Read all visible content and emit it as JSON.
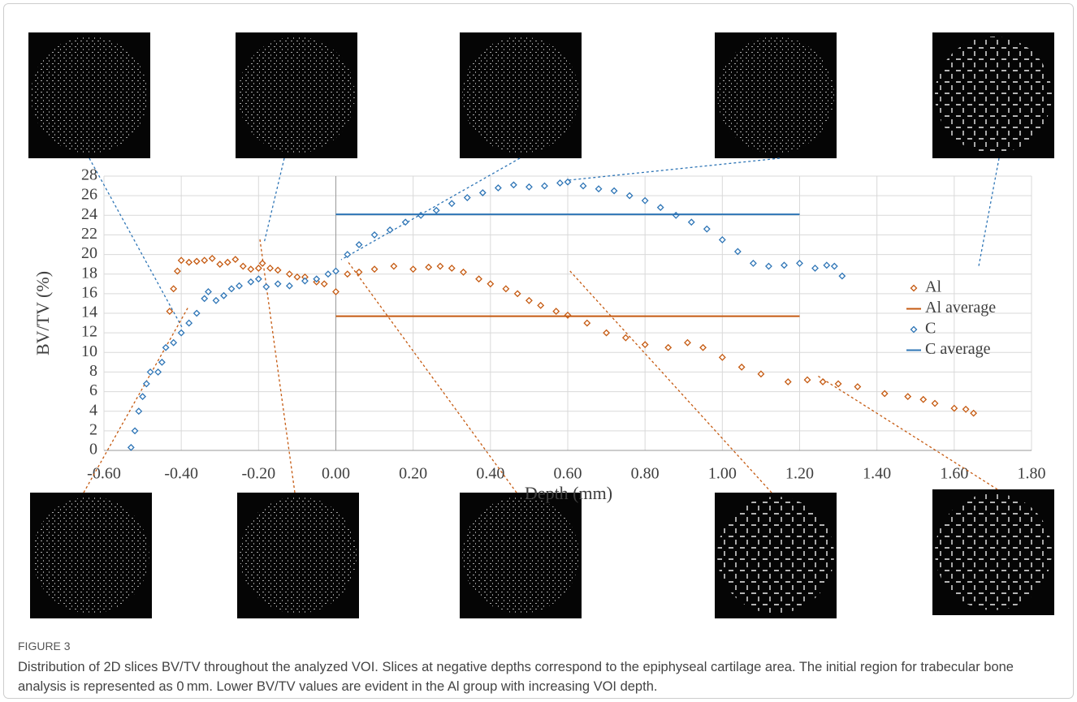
{
  "chart_data": {
    "type": "scatter",
    "ylabel": "BV/TV (%)",
    "xlabel": "Depth (mm)",
    "xlim": [
      -0.6,
      1.8
    ],
    "xticks": [
      {
        "value": -0.6,
        "label": "-0.60"
      },
      {
        "value": -0.4,
        "label": "-0.40"
      },
      {
        "value": -0.2,
        "label": "-0.20"
      },
      {
        "value": 0,
        "label": "0.00"
      },
      {
        "value": 0.2,
        "label": "0.20"
      },
      {
        "value": 0.4,
        "label": "0.40"
      },
      {
        "value": 0.6,
        "label": "0.60"
      },
      {
        "value": 0.8,
        "label": "0.80"
      },
      {
        "value": 1.0,
        "label": "1.00"
      },
      {
        "value": 1.2,
        "label": "1.20"
      },
      {
        "value": 1.4,
        "label": "1.40"
      },
      {
        "value": 1.6,
        "label": "1.60"
      },
      {
        "value": 1.8,
        "label": "1.80"
      }
    ],
    "ylim": [
      0,
      28
    ],
    "yticks": [
      0,
      2,
      4,
      6,
      8,
      10,
      12,
      14,
      16,
      18,
      20,
      22,
      24,
      26,
      28
    ],
    "grid": true,
    "legend": "right",
    "series": [
      {
        "name": "Al",
        "color": "#c55a11",
        "marker": "diamond",
        "x": [
          -0.43,
          -0.42,
          -0.41,
          -0.4,
          -0.38,
          -0.36,
          -0.34,
          -0.32,
          -0.3,
          -0.28,
          -0.26,
          -0.24,
          -0.22,
          -0.2,
          -0.19,
          -0.17,
          -0.15,
          -0.12,
          -0.1,
          -0.08,
          -0.05,
          -0.03,
          0.0,
          0.03,
          0.06,
          0.1,
          0.15,
          0.2,
          0.24,
          0.27,
          0.3,
          0.33,
          0.37,
          0.4,
          0.44,
          0.47,
          0.5,
          0.53,
          0.57,
          0.6,
          0.65,
          0.7,
          0.75,
          0.8,
          0.86,
          0.91,
          0.95,
          1.0,
          1.05,
          1.1,
          1.17,
          1.22,
          1.26,
          1.3,
          1.35,
          1.42,
          1.48,
          1.52,
          1.55,
          1.6,
          1.63,
          1.65
        ],
        "values": [
          14.2,
          16.5,
          18.3,
          19.4,
          19.2,
          19.3,
          19.4,
          19.6,
          19.0,
          19.2,
          19.5,
          18.8,
          18.5,
          18.6,
          19.1,
          18.6,
          18.4,
          18.0,
          17.7,
          17.7,
          17.2,
          17.0,
          16.2,
          18.0,
          18.2,
          18.5,
          18.8,
          18.5,
          18.7,
          18.8,
          18.6,
          18.2,
          17.5,
          17.0,
          16.5,
          16.0,
          15.3,
          14.8,
          14.2,
          13.8,
          13.0,
          12.0,
          11.5,
          10.8,
          10.5,
          11.0,
          10.5,
          9.5,
          8.5,
          7.8,
          7.0,
          7.2,
          7.0,
          6.8,
          6.5,
          5.8,
          5.5,
          5.2,
          4.8,
          4.3,
          4.2,
          3.8
        ]
      },
      {
        "name": "Al average",
        "color": "#c55a11",
        "marker": "line",
        "x": [
          0,
          1.2
        ],
        "values": [
          13.7,
          13.7
        ]
      },
      {
        "name": "C",
        "color": "#2e75b6",
        "marker": "diamond",
        "x": [
          -0.53,
          -0.52,
          -0.51,
          -0.5,
          -0.49,
          -0.48,
          -0.46,
          -0.45,
          -0.44,
          -0.42,
          -0.4,
          -0.38,
          -0.36,
          -0.34,
          -0.33,
          -0.31,
          -0.29,
          -0.27,
          -0.25,
          -0.22,
          -0.2,
          -0.18,
          -0.15,
          -0.12,
          -0.08,
          -0.05,
          -0.02,
          0.0,
          0.03,
          0.06,
          0.1,
          0.14,
          0.18,
          0.22,
          0.26,
          0.3,
          0.34,
          0.38,
          0.42,
          0.46,
          0.5,
          0.54,
          0.58,
          0.6,
          0.64,
          0.68,
          0.72,
          0.76,
          0.8,
          0.84,
          0.88,
          0.92,
          0.96,
          1.0,
          1.04,
          1.08,
          1.12,
          1.16,
          1.2,
          1.24,
          1.27,
          1.29,
          1.31
        ],
        "values": [
          0.3,
          2.0,
          4.0,
          5.5,
          6.8,
          8.0,
          8.0,
          9.0,
          10.5,
          11.0,
          12.0,
          13.0,
          14.0,
          15.5,
          16.2,
          15.3,
          15.8,
          16.5,
          16.8,
          17.2,
          17.5,
          16.7,
          17.0,
          16.8,
          17.3,
          17.5,
          18.0,
          18.3,
          20.0,
          21.0,
          22.0,
          22.5,
          23.3,
          24.0,
          24.5,
          25.2,
          25.8,
          26.3,
          26.8,
          27.1,
          26.9,
          27.0,
          27.3,
          27.4,
          27.0,
          26.7,
          26.5,
          26.0,
          25.5,
          24.8,
          24.0,
          23.3,
          22.6,
          21.5,
          20.3,
          19.1,
          18.8,
          18.9,
          19.1,
          18.6,
          18.9,
          18.8,
          17.8
        ]
      },
      {
        "name": "C average",
        "color": "#2e75b6",
        "marker": "line",
        "x": [
          0,
          1.2
        ],
        "values": [
          24.1,
          24.1
        ]
      }
    ]
  },
  "figure": {
    "label": "FIGURE 3",
    "caption": "Distribution of 2D slices BV/TV throughout the analyzed VOI. Slices at negative depths correspond to the epiphyseal cartilage area. The initial region for trabecular bone analysis is represented as 0 mm. Lower BV/TV values are evident in the Al group with increasing VOI depth."
  }
}
